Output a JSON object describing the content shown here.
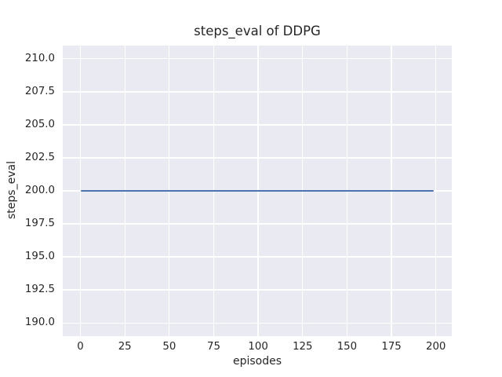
{
  "chart_data": {
    "type": "line",
    "title": "steps_eval of DDPG",
    "xlabel": "episodes",
    "ylabel": "steps_eval",
    "series": [
      {
        "name": "DDPG",
        "x": [
          0,
          199
        ],
        "y": [
          200,
          200
        ],
        "note": "constant value 200 across all episodes from 0 to 199",
        "color": "#4C72B0"
      }
    ],
    "xticks": [
      0,
      25,
      50,
      75,
      100,
      125,
      150,
      175,
      200
    ],
    "xtick_labels": [
      "0",
      "25",
      "50",
      "75",
      "100",
      "125",
      "150",
      "175",
      "200"
    ],
    "yticks": [
      190.0,
      192.5,
      195.0,
      197.5,
      200.0,
      202.5,
      205.0,
      207.5,
      210.0
    ],
    "ytick_labels": [
      "190.0",
      "192.5",
      "195.0",
      "197.5",
      "200.0",
      "202.5",
      "205.0",
      "207.5",
      "210.0"
    ],
    "xlim": [
      -9.95,
      208.95
    ],
    "ylim": [
      189.0,
      211.0
    ],
    "grid": true,
    "legend": false,
    "style": {
      "figure_background": "#FFFFFF",
      "plot_background": "#EAEAF2",
      "grid_color": "#FFFFFF",
      "line_color": "#4C72B0",
      "text_color": "#262626"
    }
  }
}
